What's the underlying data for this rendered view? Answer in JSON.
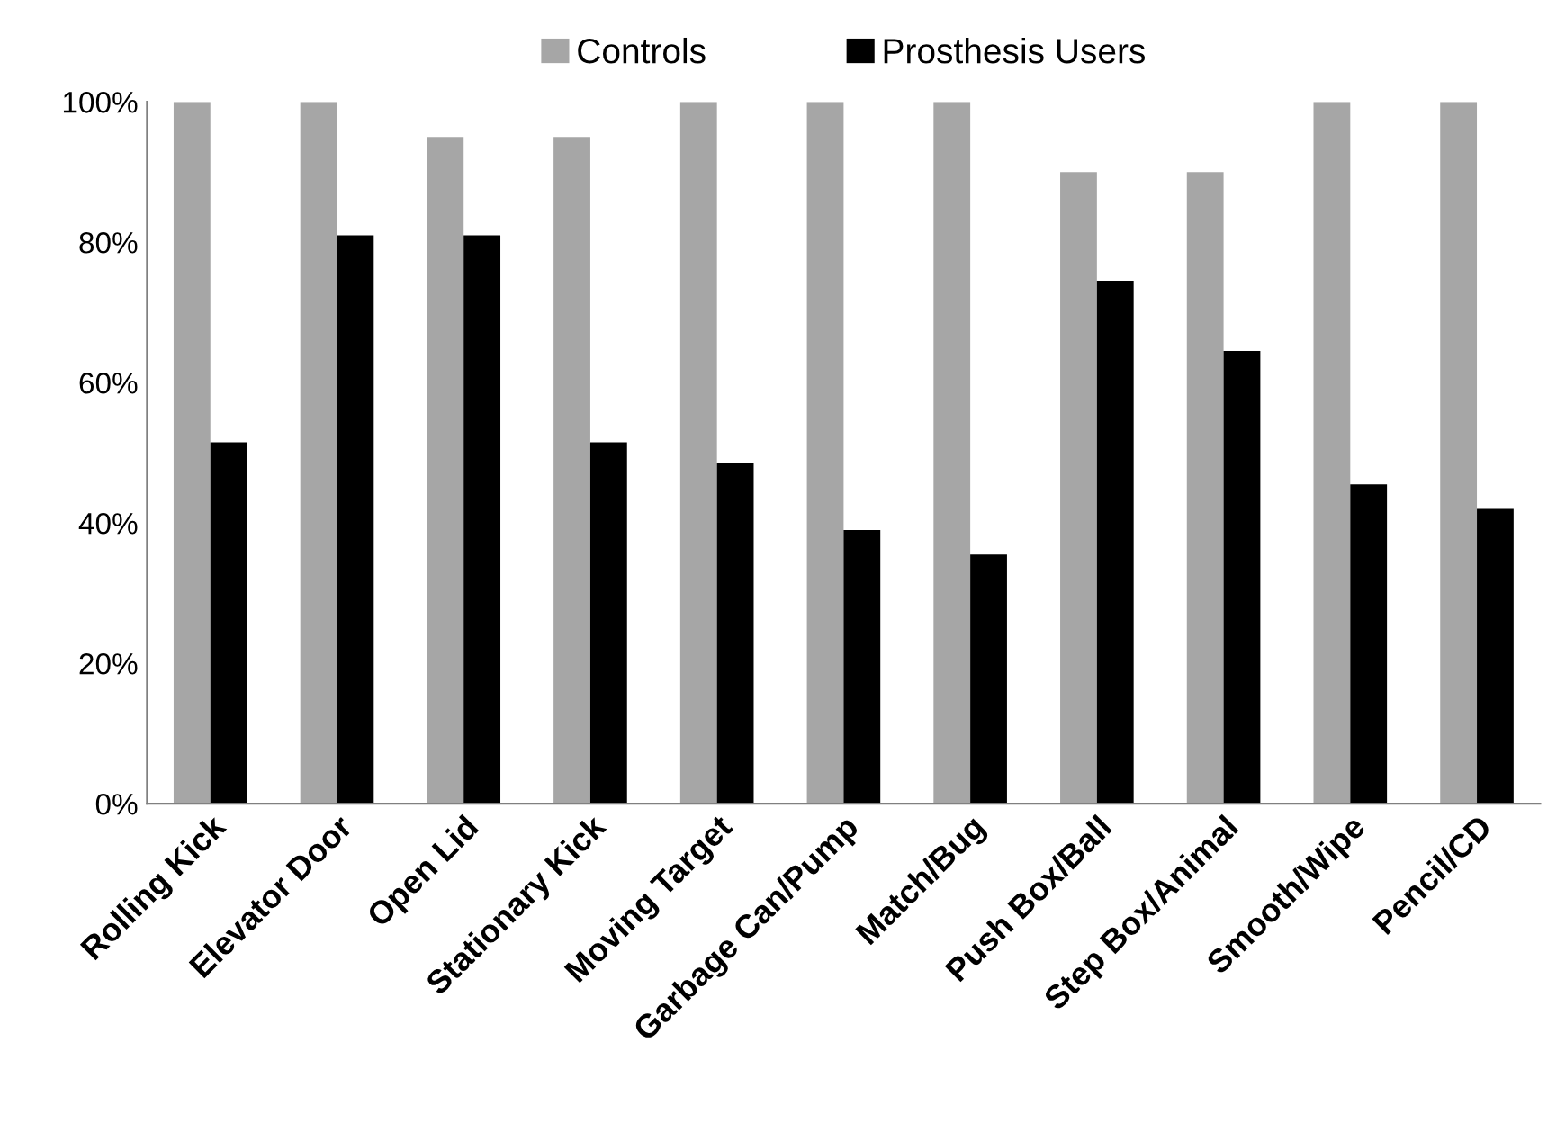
{
  "chart_data": {
    "type": "bar",
    "categories": [
      "Rolling Kick",
      "Elevator Door",
      "Open Lid",
      "Stationary Kick",
      "Moving Target",
      "Garbage Can/Pump",
      "Match/Bug",
      "Push Box/Ball",
      "Step Box/Animal",
      "Smooth/Wipe",
      "Pencil/CD"
    ],
    "series": [
      {
        "name": "Controls",
        "color": "#a6a6a6",
        "values": [
          100,
          100,
          95,
          95,
          100,
          100,
          100,
          90,
          90,
          100,
          100
        ]
      },
      {
        "name": "Prosthesis Users",
        "color": "#000000",
        "values": [
          51.5,
          81,
          81,
          51.5,
          48.5,
          39,
          35.5,
          74.5,
          64.5,
          45.5,
          42
        ]
      }
    ],
    "ylim": [
      0,
      100
    ],
    "yticks": [
      {
        "value": 0,
        "label": "0%"
      },
      {
        "value": 20,
        "label": "20%"
      },
      {
        "value": 40,
        "label": "40%"
      },
      {
        "value": 60,
        "label": "60%"
      },
      {
        "value": 80,
        "label": "80%"
      },
      {
        "value": 100,
        "label": "100%"
      }
    ],
    "grid": false,
    "legend": "top"
  }
}
